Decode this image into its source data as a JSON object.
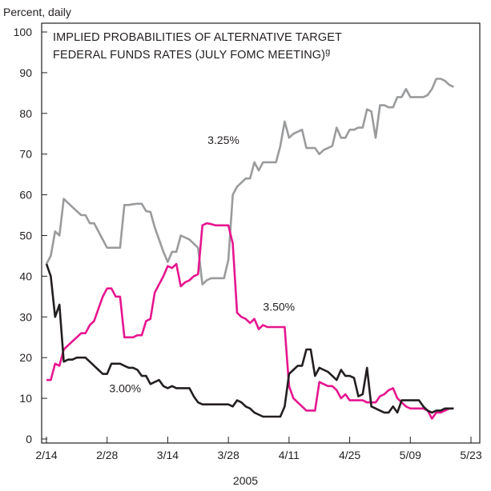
{
  "chart_data": {
    "type": "line",
    "title": "IMPLIED PROBABILITIES OF ALTERNATIVE TARGET",
    "title_line2": "FEDERAL FUNDS RATES (JULY FOMC MEETING)",
    "title_footnote": "g",
    "ylabel": "Percent, daily",
    "xlabel": "2005",
    "ylim": [
      0,
      100
    ],
    "yticks": [
      0,
      10,
      20,
      30,
      40,
      50,
      60,
      70,
      80,
      90,
      100
    ],
    "xlim": [
      0,
      98
    ],
    "xticks": [
      {
        "day": 0,
        "label": "2/14"
      },
      {
        "day": 14,
        "label": "2/28"
      },
      {
        "day": 28,
        "label": "3/14"
      },
      {
        "day": 42,
        "label": "3/28"
      },
      {
        "day": 56,
        "label": "4/11"
      },
      {
        "day": 70,
        "label": "4/25"
      },
      {
        "day": 84,
        "label": "5/09"
      },
      {
        "day": 98,
        "label": "5/23"
      }
    ],
    "grid": false,
    "series": [
      {
        "name": "3.25%",
        "color": "#9a9b9d",
        "label_at": [
          37.2,
          72.5
        ],
        "points": [
          [
            0,
            43
          ],
          [
            1,
            45
          ],
          [
            2,
            51
          ],
          [
            3,
            50
          ],
          [
            4,
            59
          ],
          [
            5,
            58
          ],
          [
            6,
            57
          ],
          [
            7,
            56
          ],
          [
            8,
            55
          ],
          [
            9,
            55
          ],
          [
            10,
            53
          ],
          [
            11,
            53
          ],
          [
            12,
            51
          ],
          [
            13,
            49
          ],
          [
            14,
            47
          ],
          [
            15,
            47
          ],
          [
            16,
            47
          ],
          [
            17,
            47
          ],
          [
            18,
            57.5
          ],
          [
            19,
            57.5
          ],
          [
            20,
            57.7
          ],
          [
            21,
            57.8
          ],
          [
            22,
            57.8
          ],
          [
            23,
            56
          ],
          [
            24,
            55.8
          ],
          [
            25,
            52
          ],
          [
            26,
            49
          ],
          [
            27,
            46
          ],
          [
            28,
            43.5
          ],
          [
            29,
            46
          ],
          [
            30,
            46
          ],
          [
            31,
            50
          ],
          [
            32,
            49.5
          ],
          [
            33,
            49
          ],
          [
            34,
            48
          ],
          [
            35,
            47
          ],
          [
            36,
            38
          ],
          [
            37,
            39
          ],
          [
            38,
            39.5
          ],
          [
            39,
            39.5
          ],
          [
            40,
            39.5
          ],
          [
            41,
            39.5
          ],
          [
            42,
            44
          ],
          [
            43,
            60
          ],
          [
            44,
            62
          ],
          [
            45,
            63
          ],
          [
            46,
            64
          ],
          [
            47,
            64
          ],
          [
            48,
            68
          ],
          [
            49,
            66
          ],
          [
            50,
            68
          ],
          [
            51,
            68
          ],
          [
            52,
            68
          ],
          [
            53,
            68
          ],
          [
            54,
            72
          ],
          [
            55,
            78
          ],
          [
            56,
            74
          ],
          [
            57,
            75
          ],
          [
            58,
            75.5
          ],
          [
            59,
            76
          ],
          [
            60,
            71.5
          ],
          [
            61,
            71.5
          ],
          [
            62,
            71.5
          ],
          [
            63,
            70
          ],
          [
            64,
            71
          ],
          [
            65,
            71.5
          ],
          [
            66,
            72
          ],
          [
            67,
            76.5
          ],
          [
            68,
            74
          ],
          [
            69,
            74
          ],
          [
            70,
            76
          ],
          [
            71,
            76
          ],
          [
            72,
            76.5
          ],
          [
            73,
            76.5
          ],
          [
            74,
            81
          ],
          [
            75,
            80.5
          ],
          [
            76,
            74
          ],
          [
            77,
            82
          ],
          [
            78,
            82
          ],
          [
            79,
            81.5
          ],
          [
            80,
            81.5
          ],
          [
            81,
            84
          ],
          [
            82,
            84
          ],
          [
            83,
            86
          ],
          [
            84,
            84
          ],
          [
            85,
            84
          ],
          [
            86,
            84
          ],
          [
            87,
            84
          ],
          [
            88,
            84.5
          ],
          [
            89,
            86
          ],
          [
            90,
            88.5
          ],
          [
            91,
            88.5
          ],
          [
            92,
            88
          ],
          [
            93,
            87
          ],
          [
            94,
            86.5
          ]
        ]
      },
      {
        "name": "3.50%",
        "color": "#e6168e",
        "label_at": [
          50,
          31.5
        ],
        "points": [
          [
            0,
            14.5
          ],
          [
            1,
            14.5
          ],
          [
            2,
            18.5
          ],
          [
            3,
            18
          ],
          [
            4,
            22
          ],
          [
            5,
            23
          ],
          [
            6,
            24
          ],
          [
            7,
            25
          ],
          [
            8,
            26
          ],
          [
            9,
            26
          ],
          [
            10,
            28
          ],
          [
            11,
            29
          ],
          [
            12,
            32
          ],
          [
            13,
            35
          ],
          [
            14,
            37
          ],
          [
            15,
            37
          ],
          [
            16,
            35
          ],
          [
            17,
            35
          ],
          [
            18,
            25
          ],
          [
            19,
            25
          ],
          [
            20,
            25
          ],
          [
            21,
            25.5
          ],
          [
            22,
            25.5
          ],
          [
            23,
            29
          ],
          [
            24,
            29.5
          ],
          [
            25,
            36
          ],
          [
            26,
            38
          ],
          [
            27,
            40
          ],
          [
            28,
            42.5
          ],
          [
            29,
            42
          ],
          [
            30,
            43
          ],
          [
            31,
            37.5
          ],
          [
            32,
            38.5
          ],
          [
            33,
            39
          ],
          [
            34,
            40
          ],
          [
            35,
            40.5
          ],
          [
            36,
            52.5
          ],
          [
            37,
            53
          ],
          [
            38,
            52.8
          ],
          [
            39,
            52.5
          ],
          [
            40,
            52.5
          ],
          [
            41,
            52.5
          ],
          [
            42,
            52.5
          ],
          [
            43,
            48
          ],
          [
            44,
            31
          ],
          [
            45,
            30
          ],
          [
            46,
            29.5
          ],
          [
            47,
            28.5
          ],
          [
            48,
            29.5
          ],
          [
            49,
            27
          ],
          [
            50,
            28
          ],
          [
            51,
            27.5
          ],
          [
            52,
            27.5
          ],
          [
            53,
            27.5
          ],
          [
            54,
            27.5
          ],
          [
            55,
            27.5
          ],
          [
            56,
            13
          ],
          [
            57,
            10
          ],
          [
            58,
            9
          ],
          [
            59,
            8
          ],
          [
            60,
            7
          ],
          [
            61,
            7
          ],
          [
            62,
            7
          ],
          [
            63,
            14
          ],
          [
            64,
            13.5
          ],
          [
            65,
            13
          ],
          [
            66,
            13
          ],
          [
            67,
            12
          ],
          [
            68,
            10
          ],
          [
            69,
            11
          ],
          [
            70,
            9.5
          ],
          [
            71,
            9.5
          ],
          [
            72,
            9.5
          ],
          [
            73,
            9.5
          ],
          [
            74,
            9
          ],
          [
            75,
            9
          ],
          [
            76,
            9
          ],
          [
            77,
            10.5
          ],
          [
            78,
            11
          ],
          [
            79,
            12
          ],
          [
            80,
            12.5
          ],
          [
            81,
            10
          ],
          [
            82,
            9
          ],
          [
            83,
            8
          ],
          [
            84,
            7.5
          ],
          [
            85,
            7.5
          ],
          [
            86,
            7.5
          ],
          [
            87,
            7.5
          ],
          [
            88,
            7
          ],
          [
            89,
            5
          ],
          [
            90,
            6.5
          ],
          [
            91,
            6.5
          ],
          [
            92,
            7
          ],
          [
            93,
            7.5
          ],
          [
            94,
            7.5
          ]
        ]
      },
      {
        "name": "3.00%",
        "color": "#231f20",
        "label_at": [
          14.5,
          11.5
        ],
        "points": [
          [
            0,
            43
          ],
          [
            1,
            40
          ],
          [
            2,
            30
          ],
          [
            3,
            33
          ],
          [
            4,
            19
          ],
          [
            5,
            19.5
          ],
          [
            6,
            19.5
          ],
          [
            7,
            20
          ],
          [
            8,
            20
          ],
          [
            9,
            20
          ],
          [
            10,
            19
          ],
          [
            11,
            18
          ],
          [
            12,
            17
          ],
          [
            13,
            16
          ],
          [
            14,
            16
          ],
          [
            15,
            18.5
          ],
          [
            16,
            18.5
          ],
          [
            17,
            18.5
          ],
          [
            18,
            18
          ],
          [
            19,
            17.5
          ],
          [
            20,
            17.5
          ],
          [
            21,
            17
          ],
          [
            22,
            15.5
          ],
          [
            23,
            15.5
          ],
          [
            24,
            13.5
          ],
          [
            25,
            14
          ],
          [
            26,
            14.5
          ],
          [
            27,
            13
          ],
          [
            28,
            12.5
          ],
          [
            29,
            13
          ],
          [
            30,
            12.5
          ],
          [
            31,
            12.5
          ],
          [
            32,
            12.5
          ],
          [
            33,
            12.5
          ],
          [
            34,
            10.5
          ],
          [
            35,
            9
          ],
          [
            36,
            8.5
          ],
          [
            37,
            8.5
          ],
          [
            38,
            8.5
          ],
          [
            39,
            8.5
          ],
          [
            40,
            8.5
          ],
          [
            41,
            8.5
          ],
          [
            42,
            8.5
          ],
          [
            43,
            8
          ],
          [
            44,
            9.5
          ],
          [
            45,
            9
          ],
          [
            46,
            8
          ],
          [
            47,
            7.5
          ],
          [
            48,
            6.5
          ],
          [
            49,
            6
          ],
          [
            50,
            5.5
          ],
          [
            51,
            5.5
          ],
          [
            52,
            5.5
          ],
          [
            53,
            5.5
          ],
          [
            54,
            5.5
          ],
          [
            55,
            8
          ],
          [
            56,
            16
          ],
          [
            57,
            17
          ],
          [
            58,
            18
          ],
          [
            59,
            18
          ],
          [
            60,
            22
          ],
          [
            61,
            22
          ],
          [
            62,
            15.5
          ],
          [
            63,
            17.5
          ],
          [
            64,
            17
          ],
          [
            65,
            16.5
          ],
          [
            66,
            15.5
          ],
          [
            67,
            14.5
          ],
          [
            68,
            17
          ],
          [
            69,
            15.5
          ],
          [
            70,
            15.5
          ],
          [
            71,
            15
          ],
          [
            72,
            10.5
          ],
          [
            73,
            11
          ],
          [
            74,
            17.5
          ],
          [
            75,
            8
          ],
          [
            76,
            7.5
          ],
          [
            77,
            7
          ],
          [
            78,
            6.5
          ],
          [
            79,
            6.5
          ],
          [
            80,
            8
          ],
          [
            81,
            6.5
          ],
          [
            82,
            9.5
          ],
          [
            83,
            9.5
          ],
          [
            84,
            9.5
          ],
          [
            85,
            9.5
          ],
          [
            86,
            9.5
          ],
          [
            87,
            8
          ],
          [
            88,
            7
          ],
          [
            89,
            6.5
          ],
          [
            90,
            7
          ],
          [
            91,
            7
          ],
          [
            92,
            7.5
          ],
          [
            93,
            7.5
          ],
          [
            94,
            7.5
          ]
        ]
      }
    ]
  }
}
